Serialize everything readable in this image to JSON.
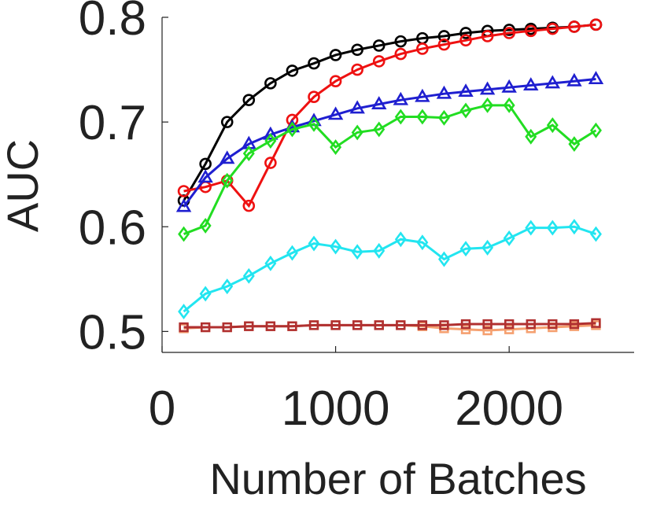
{
  "chart_data": {
    "type": "line",
    "title": "",
    "xlabel": "Number of Batches",
    "ylabel": "AUC",
    "xlim": [
      0,
      2720
    ],
    "ylim": [
      0.48,
      0.8
    ],
    "xticks": [
      0,
      1000,
      2000
    ],
    "xtick_labels": [
      "0",
      "1000",
      "2000"
    ],
    "yticks": [
      0.5,
      0.6,
      0.7,
      0.8
    ],
    "ytick_labels": [
      "0.5",
      "0.6",
      "0.7",
      "0.8"
    ],
    "grid": false,
    "legend": "none",
    "x": [
      125,
      250,
      375,
      500,
      625,
      750,
      875,
      1000,
      1125,
      1250,
      1375,
      1500,
      1625,
      1750,
      1875,
      2000,
      2125,
      2250,
      2375,
      2500
    ],
    "series": [
      {
        "color": "#000000",
        "marker": "circle",
        "values": [
          0.625,
          0.66,
          0.7,
          0.721,
          0.737,
          0.749,
          0.756,
          0.764,
          0.769,
          0.773,
          0.777,
          0.78,
          0.782,
          0.785,
          0.787,
          0.788,
          0.789,
          0.79,
          0.791,
          0.793
        ]
      },
      {
        "color": "#ee1111",
        "marker": "circle",
        "values": [
          0.634,
          0.638,
          0.644,
          0.62,
          0.661,
          0.702,
          0.724,
          0.739,
          0.75,
          0.758,
          0.765,
          0.77,
          0.774,
          0.778,
          0.782,
          0.785,
          0.787,
          0.789,
          0.791,
          0.793
        ]
      },
      {
        "color": "#1f1fd0",
        "marker": "triangle",
        "values": [
          0.619,
          0.647,
          0.665,
          0.679,
          0.688,
          0.695,
          0.701,
          0.707,
          0.713,
          0.717,
          0.721,
          0.724,
          0.727,
          0.729,
          0.731,
          0.733,
          0.735,
          0.737,
          0.739,
          0.741
        ]
      },
      {
        "color": "#22dd22",
        "marker": "diamond",
        "values": [
          0.593,
          0.601,
          0.644,
          0.67,
          0.682,
          0.693,
          0.698,
          0.676,
          0.69,
          0.693,
          0.705,
          0.705,
          0.704,
          0.711,
          0.716,
          0.716,
          0.686,
          0.697,
          0.679,
          0.692
        ]
      },
      {
        "color": "#22e5f0",
        "marker": "diamond",
        "values": [
          0.519,
          0.536,
          0.543,
          0.553,
          0.565,
          0.575,
          0.584,
          0.581,
          0.576,
          0.577,
          0.588,
          0.585,
          0.569,
          0.579,
          0.58,
          0.589,
          0.599,
          0.599,
          0.6,
          0.593
        ]
      },
      {
        "color": "#f5a070",
        "marker": "square",
        "values": [
          0.503,
          0.504,
          0.504,
          0.505,
          0.505,
          0.505,
          0.506,
          0.506,
          0.506,
          0.506,
          0.506,
          0.505,
          0.503,
          0.502,
          0.501,
          0.502,
          0.503,
          0.504,
          0.505,
          0.506
        ]
      },
      {
        "color": "#b03030",
        "marker": "square",
        "values": [
          0.504,
          0.504,
          0.504,
          0.505,
          0.505,
          0.505,
          0.506,
          0.506,
          0.506,
          0.506,
          0.506,
          0.506,
          0.506,
          0.507,
          0.507,
          0.507,
          0.507,
          0.507,
          0.507,
          0.508
        ]
      }
    ]
  }
}
